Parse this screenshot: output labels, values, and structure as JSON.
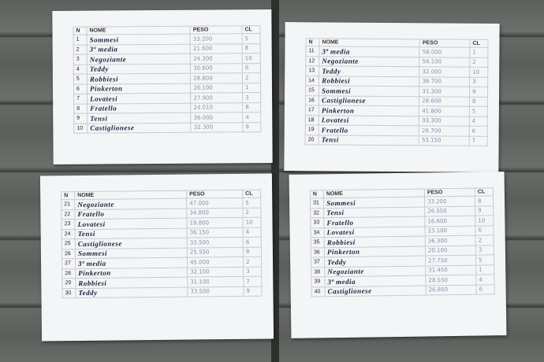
{
  "sheets": [
    {
      "header": [
        "N",
        "NOME",
        "PESO",
        "CL"
      ],
      "rows": [
        [
          1,
          "Sommesi",
          "33.200",
          5
        ],
        [
          2,
          "3ª media",
          "21.600",
          8
        ],
        [
          3,
          "Negoziante",
          "24.300",
          10
        ],
        [
          4,
          "Teddy",
          "30.600",
          6
        ],
        [
          5,
          "Robbiesi",
          "28.800",
          2
        ],
        [
          6,
          "Pinkerton",
          "26.100",
          1
        ],
        [
          7,
          "Lovatesi",
          "27.900",
          3
        ],
        [
          8,
          "Fratello",
          "24.010",
          8
        ],
        [
          9,
          "Tensi",
          "36.000",
          4
        ],
        [
          10,
          "Castiglionese",
          "32.300",
          9
        ]
      ]
    },
    {
      "header": [
        "N",
        "NOME",
        "PESO",
        "CL"
      ],
      "rows": [
        [
          11,
          "3ª media",
          "58.000",
          1
        ],
        [
          12,
          "Negoziante",
          "56.100",
          2
        ],
        [
          13,
          "Teddy",
          "32.000",
          10
        ],
        [
          14,
          "Robbiesi",
          "38.700",
          3
        ],
        [
          15,
          "Sommesi",
          "31.300",
          9
        ],
        [
          16,
          "Castiglionese",
          "28.600",
          8
        ],
        [
          17,
          "Pinkerton",
          "41.800",
          5
        ],
        [
          18,
          "Lovatesi",
          "33.300",
          4
        ],
        [
          19,
          "Fratello",
          "26.700",
          6
        ],
        [
          20,
          "Tensi",
          "53.150",
          7
        ]
      ]
    },
    {
      "header": [
        "N",
        "NOME",
        "PESO",
        "CL"
      ],
      "rows": [
        [
          21,
          "Negoziante",
          "47.000",
          5
        ],
        [
          22,
          "Fratello",
          "34.800",
          2
        ],
        [
          23,
          "Lovatesi",
          "19.800",
          10
        ],
        [
          24,
          "Tensi",
          "36.150",
          4
        ],
        [
          25,
          "Castiglionese",
          "33.500",
          6
        ],
        [
          26,
          "Sommesi",
          "25.550",
          8
        ],
        [
          27,
          "3ª media",
          "45.000",
          2
        ],
        [
          28,
          "Pinkerton",
          "32.100",
          3
        ],
        [
          29,
          "Robbiesi",
          "31.100",
          7
        ],
        [
          30,
          "Teddy",
          "33.500",
          9
        ]
      ]
    },
    {
      "header": [
        "N",
        "NOME",
        "PESO",
        "CL"
      ],
      "rows": [
        [
          31,
          "Sommesi",
          "33.200",
          8
        ],
        [
          32,
          "Tensi",
          "26.550",
          9
        ],
        [
          33,
          "Fratello",
          "16.600",
          10
        ],
        [
          34,
          "Lovatesi",
          "23.100",
          6
        ],
        [
          35,
          "Robbiesi",
          "36.300",
          2
        ],
        [
          36,
          "Pinkerton",
          "20.100",
          3
        ],
        [
          37,
          "Teddy",
          "27.750",
          5
        ],
        [
          38,
          "Negoziante",
          "31.450",
          1
        ],
        [
          39,
          "3ª media",
          "28.550",
          4
        ],
        [
          40,
          "Castiglionese",
          "26.850",
          6
        ]
      ]
    }
  ]
}
